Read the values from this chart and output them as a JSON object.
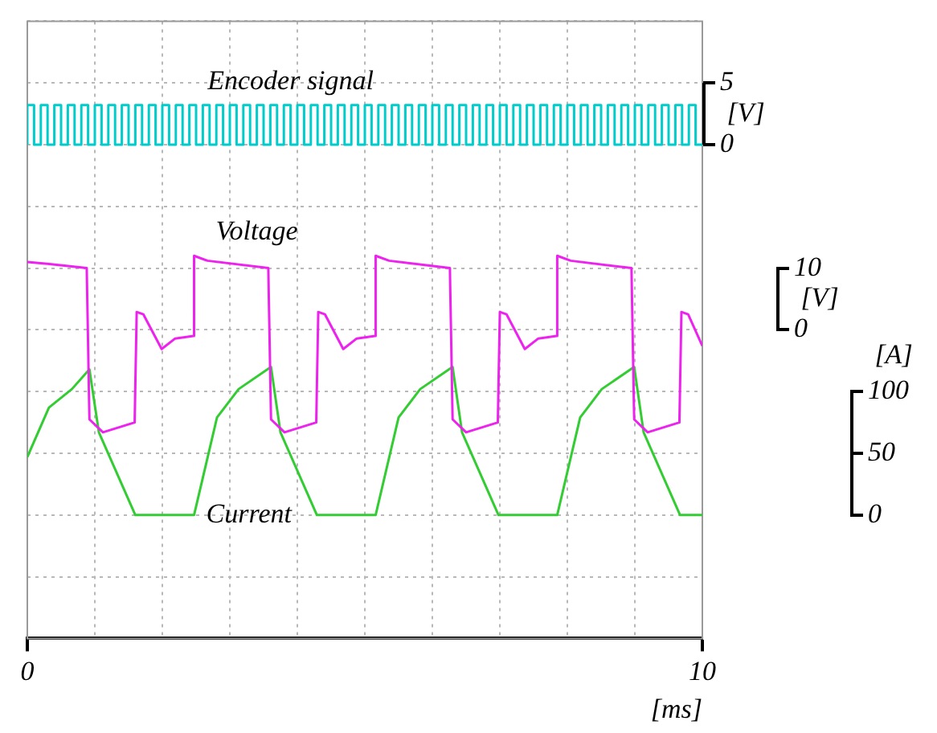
{
  "chart_data": {
    "type": "line",
    "xlabel": "[ms]",
    "ylabel": "[V]",
    "y2label": "[V]",
    "y3label": "[A]",
    "xlim": [
      0,
      10
    ],
    "xticks": [
      0,
      {
        "value": 1,
        "label": null
      },
      {
        "value": 2,
        "label": null
      },
      {
        "value": 3,
        "label": null
      },
      {
        "value": 4,
        "label": null
      },
      {
        "value": 5,
        "label": null
      },
      {
        "value": 6,
        "label": null
      },
      {
        "value": 7,
        "label": null
      },
      {
        "value": 8,
        "label": null
      },
      {
        "value": 9,
        "label": null
      },
      10
    ],
    "ylim": [
      -40,
      10
    ],
    "yticks": [
      {
        "value": -40,
        "label": null
      },
      {
        "value": -35,
        "label": null
      },
      {
        "value": -30,
        "label": null
      },
      {
        "value": -25,
        "label": null
      },
      {
        "value": -20,
        "label": null
      },
      {
        "value": -15,
        "label": null
      },
      {
        "value": -10,
        "label": null
      },
      {
        "value": -5,
        "label": null
      },
      0,
      5,
      {
        "value": 10,
        "label": null
      }
    ],
    "y2lim": [
      -50,
      50
    ],
    "y2ticks": [
      0,
      10
    ],
    "y3lim": [
      -100,
      400
    ],
    "y3ticks": [
      0,
      50,
      100
    ],
    "grid": true,
    "legend": false,
    "series": [
      {
        "name": "Encoder signal",
        "type": "step",
        "color": "#00cccc",
        "x": [
          0,
          0.1,
          0.2,
          0.3,
          0.4,
          0.5,
          0.6,
          0.7,
          0.8,
          0.9,
          1,
          1.1,
          1.2,
          1.3,
          1.4,
          1.5,
          1.6,
          1.7,
          1.8,
          1.9,
          2,
          2.1,
          2.2,
          2.3,
          2.4,
          2.5,
          2.6,
          2.7,
          2.8,
          2.9,
          3,
          3.1,
          3.2,
          3.3,
          3.4,
          3.5,
          3.6,
          3.7,
          3.8,
          3.9,
          4,
          4.1,
          4.2,
          4.3,
          4.4,
          4.5,
          4.6,
          4.7,
          4.8,
          4.9,
          5,
          5.1,
          5.2,
          5.3,
          5.4,
          5.5,
          5.6,
          5.7,
          5.8,
          5.9,
          6,
          6.1,
          6.2,
          6.3,
          6.4,
          6.5,
          6.6,
          6.7,
          6.8,
          6.9,
          7,
          7.1,
          7.2,
          7.3,
          7.4,
          7.5,
          7.6,
          7.7,
          7.8,
          7.9,
          8,
          8.1,
          8.2,
          8.3,
          8.4,
          8.5,
          8.6,
          8.7,
          8.8,
          8.9,
          9,
          9.1,
          9.2,
          9.3,
          9.4,
          9.5,
          9.6,
          9.7,
          9.8,
          9.9,
          10
        ],
        "values": [
          0,
          3.2,
          0,
          3.2,
          0,
          3.2,
          0,
          3.2,
          0,
          3.2,
          0,
          3.2,
          0,
          3.2,
          0,
          3.2,
          0,
          3.2,
          0,
          3.2,
          0,
          3.2,
          0,
          3.2,
          0,
          3.2,
          0,
          3.2,
          0,
          3.2,
          0,
          3.2,
          0,
          3.2,
          0,
          3.2,
          0,
          3.2,
          0,
          3.2,
          0,
          3.2,
          0,
          3.2,
          0,
          3.2,
          0,
          3.2,
          0,
          3.2,
          0,
          3.2,
          0,
          3.2,
          0,
          3.2,
          0,
          3.2,
          0,
          3.2,
          0,
          3.2,
          0,
          3.2,
          0,
          3.2,
          0,
          3.2,
          0,
          3.2,
          0,
          3.2,
          0,
          3.2,
          0,
          3.2,
          0,
          3.2,
          0,
          3.2,
          0,
          3.2,
          0,
          3.2,
          0,
          3.2,
          0,
          3.2,
          0,
          3.2,
          0,
          3.2,
          0,
          3.2,
          0,
          3.2,
          0,
          3.2,
          0,
          3.2,
          0
        ]
      },
      {
        "name": "Voltage",
        "axis": "y2",
        "color": "#ee22ee",
        "x": [
          0,
          0.3,
          0.88,
          0.92,
          1.12,
          1.59,
          1.62,
          1.72,
          1.99,
          2.19,
          2.46,
          2.47,
          2.67,
          3.57,
          3.61,
          3.81,
          4.28,
          4.31,
          4.41,
          4.68,
          4.88,
          5.15,
          5.16,
          5.36,
          6.26,
          6.3,
          6.5,
          6.97,
          7,
          7.1,
          7.37,
          7.57,
          7.84,
          7.85,
          8.05,
          8.95,
          8.99,
          9.19,
          9.66,
          9.69,
          9.79,
          10
        ],
        "values": [
          11,
          10.7,
          10,
          -14.5,
          -16.6,
          -15,
          2.9,
          2.5,
          -3.1,
          -1.4,
          -1,
          12,
          11.2,
          10,
          -14.5,
          -16.6,
          -15,
          2.9,
          2.5,
          -3.1,
          -1.4,
          -1,
          12,
          11.2,
          10,
          -14.5,
          -16.6,
          -15,
          2.9,
          2.5,
          -3.1,
          -1.4,
          -1,
          12,
          11.2,
          10,
          -14.5,
          -16.6,
          -15,
          2.9,
          2.5,
          -2.6
        ]
      },
      {
        "name": "Current",
        "axis": "y3",
        "color": "#33cc33",
        "x": [
          0,
          0.32,
          0.66,
          0.92,
          1.06,
          1.6,
          2.47,
          2.81,
          3.13,
          3.61,
          3.75,
          4.29,
          5.16,
          5.5,
          5.82,
          6.3,
          6.44,
          6.98,
          7.85,
          8.19,
          8.51,
          8.99,
          9.13,
          9.67,
          10
        ],
        "values": [
          47,
          87,
          102,
          118,
          67,
          0,
          0,
          79,
          102,
          120,
          67,
          0,
          0,
          79,
          102,
          120,
          67,
          0,
          0,
          79,
          102,
          120,
          67,
          0,
          0
        ]
      }
    ]
  }
}
